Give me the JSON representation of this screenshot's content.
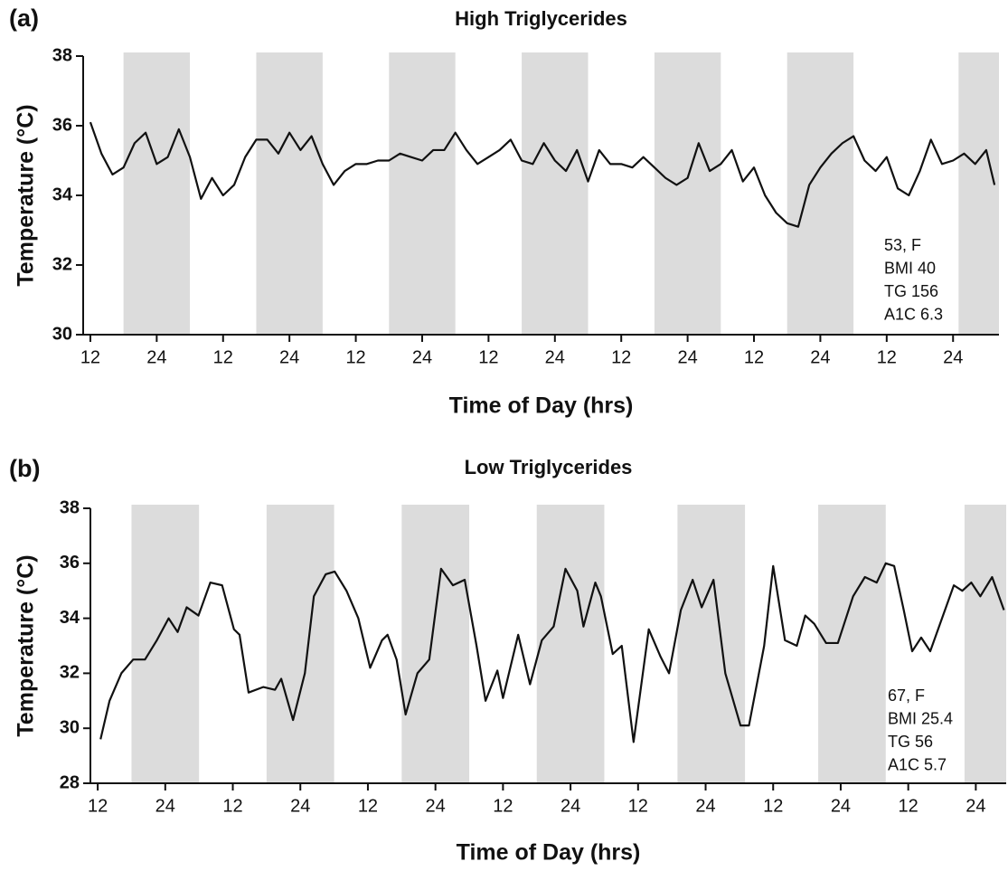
{
  "chart_data": [
    {
      "type": "line",
      "panel_label": "(a)",
      "title": "High Triglycerides",
      "x_label": "Time of Day (hrs)",
      "y_label": "Temperature (°C)",
      "annotation": [
        "53, F",
        "BMI 40",
        "TG 156",
        "A1C 6.3"
      ],
      "xlim": [
        10.7,
        176.3
      ],
      "ylim": [
        30,
        38
      ],
      "yticks": [
        30,
        32,
        34,
        36,
        38
      ],
      "xticks": [
        12,
        24,
        {
          "value": 36,
          "label": "12"
        },
        {
          "value": 48,
          "label": "24"
        },
        {
          "value": 60,
          "label": "12"
        },
        {
          "value": 72,
          "label": "24"
        },
        {
          "value": 84,
          "label": "12"
        },
        {
          "value": 96,
          "label": "24"
        },
        {
          "value": 108,
          "label": "12"
        },
        {
          "value": 120,
          "label": "24"
        },
        {
          "value": 132,
          "label": "12"
        },
        {
          "value": 144,
          "label": "24"
        },
        {
          "value": 156,
          "label": "12"
        },
        {
          "value": 168,
          "label": "24"
        }
      ],
      "shaded_periods": [
        [
          18,
          30
        ],
        [
          42,
          54
        ],
        [
          66,
          78
        ],
        [
          90,
          102
        ],
        [
          114,
          126
        ],
        [
          138,
          150
        ],
        [
          169,
          176.3
        ]
      ],
      "shade_color": "#dcdcdc",
      "series": [
        {
          "color": "#111111",
          "x": [
            12,
            14,
            16,
            18,
            20,
            22,
            24,
            26,
            28,
            30,
            32,
            34,
            36,
            38,
            40,
            42,
            44,
            46,
            48,
            50,
            52,
            54,
            56,
            58,
            60,
            62,
            64,
            66,
            68,
            70,
            72,
            74,
            76,
            78,
            80,
            82,
            84,
            86,
            88,
            90,
            92,
            94,
            96,
            98,
            100,
            102,
            104,
            106,
            108,
            110,
            112,
            114,
            116,
            118,
            120,
            122,
            124,
            126,
            128,
            130,
            132,
            134,
            136,
            138,
            140,
            142,
            144,
            146,
            148,
            150,
            152,
            154,
            156,
            158,
            160,
            162,
            164,
            166,
            168,
            170,
            172,
            174,
            175.5
          ],
          "values": [
            36.1,
            35.2,
            34.6,
            34.8,
            35.5,
            35.8,
            34.9,
            35.1,
            35.9,
            35.1,
            33.9,
            34.5,
            34.0,
            34.3,
            35.1,
            35.6,
            35.6,
            35.2,
            35.8,
            35.3,
            35.7,
            34.9,
            34.3,
            34.7,
            34.9,
            34.9,
            35.0,
            35.0,
            35.2,
            35.1,
            35.0,
            35.3,
            35.3,
            35.8,
            35.3,
            34.9,
            35.1,
            35.3,
            35.6,
            35.0,
            34.9,
            35.5,
            35.0,
            34.7,
            35.3,
            34.4,
            35.3,
            34.9,
            34.9,
            34.8,
            35.1,
            34.8,
            34.5,
            34.3,
            34.5,
            35.5,
            34.7,
            34.9,
            35.3,
            34.4,
            34.8,
            34.0,
            33.5,
            33.2,
            33.1,
            34.3,
            34.8,
            35.2,
            35.5,
            35.7,
            35.0,
            34.7,
            35.1,
            34.2,
            34.0,
            34.7,
            35.6,
            34.9,
            35.0,
            35.2,
            34.9,
            35.3,
            34.3
          ]
        }
      ]
    },
    {
      "type": "line",
      "panel_label": "(b)",
      "title": "Low Triglycerides",
      "x_label": "Time of Day (hrs)",
      "y_label": "Temperature (°C)",
      "annotation": [
        "67, F",
        "BMI 25.4",
        "TG 56",
        "A1C 5.7"
      ],
      "xlim": [
        10.7,
        173.4
      ],
      "ylim": [
        28,
        38
      ],
      "yticks": [
        28,
        30,
        32,
        34,
        36,
        38
      ],
      "xticks": [
        12,
        24,
        {
          "value": 36,
          "label": "12"
        },
        {
          "value": 48,
          "label": "24"
        },
        {
          "value": 60,
          "label": "12"
        },
        {
          "value": 72,
          "label": "24"
        },
        {
          "value": 84,
          "label": "12"
        },
        {
          "value": 96,
          "label": "24"
        },
        {
          "value": 108,
          "label": "12"
        },
        {
          "value": 120,
          "label": "24"
        },
        {
          "value": 132,
          "label": "12"
        },
        {
          "value": 144,
          "label": "24"
        },
        {
          "value": 156,
          "label": "12"
        },
        {
          "value": 168,
          "label": "24"
        }
      ],
      "shaded_periods": [
        [
          18,
          30
        ],
        [
          42,
          54
        ],
        [
          66,
          78
        ],
        [
          90,
          102
        ],
        [
          115,
          127
        ],
        [
          140,
          152
        ],
        [
          166,
          173.4
        ]
      ],
      "shade_color": "#dcdcdc",
      "series": [
        {
          "color": "#111111",
          "x": [
            12.5,
            14.1,
            16.2,
            18.3,
            20.4,
            22.5,
            24.6,
            26.2,
            27.8,
            29.9,
            32,
            34.1,
            36.2,
            37.2,
            38.8,
            41.4,
            43.5,
            44.6,
            46.7,
            48.8,
            50.4,
            52.5,
            54.1,
            56.2,
            58.3,
            60.4,
            62.5,
            63.5,
            65.1,
            66.7,
            68.8,
            70.9,
            73,
            75.1,
            77.2,
            79.3,
            80.9,
            83,
            84,
            86.7,
            88.8,
            90.9,
            93,
            95.1,
            97.2,
            98.3,
            100.4,
            101.4,
            103.5,
            105.1,
            107.2,
            109.9,
            112,
            113.5,
            115.6,
            117.7,
            119.3,
            121.4,
            123.5,
            126.2,
            127.7,
            130.4,
            132,
            134.1,
            136.2,
            137.7,
            139.3,
            141.4,
            143.5,
            146.2,
            148.3,
            150.4,
            152,
            153.5,
            155.2,
            156.7,
            158.3,
            159.9,
            162,
            164.1,
            165.6,
            167.2,
            168.8,
            170.9,
            173
          ],
          "values": [
            29.6,
            31,
            32,
            32.5,
            32.5,
            33.2,
            34.0,
            33.5,
            34.4,
            34.1,
            35.3,
            35.2,
            33.6,
            33.4,
            31.3,
            31.5,
            31.4,
            31.8,
            30.3,
            32.0,
            34.8,
            35.6,
            35.7,
            35.0,
            34.0,
            32.2,
            33.2,
            33.4,
            32.5,
            30.5,
            32.0,
            32.5,
            35.8,
            35.2,
            35.4,
            33.0,
            31.0,
            32.1,
            31.1,
            33.4,
            31.6,
            33.2,
            33.7,
            35.8,
            35.0,
            33.7,
            35.3,
            34.8,
            32.7,
            33.0,
            29.5,
            33.6,
            32.6,
            32.0,
            34.3,
            35.4,
            34.4,
            35.4,
            32.0,
            30.1,
            30.1,
            33.0,
            35.9,
            33.2,
            33.0,
            34.1,
            33.8,
            33.1,
            33.1,
            34.8,
            35.5,
            35.3,
            36.0,
            35.9,
            34.3,
            32.8,
            33.3,
            32.8,
            34.0,
            35.2,
            35.0,
            35.3,
            34.8,
            35.5,
            34.3
          ]
        }
      ]
    }
  ]
}
